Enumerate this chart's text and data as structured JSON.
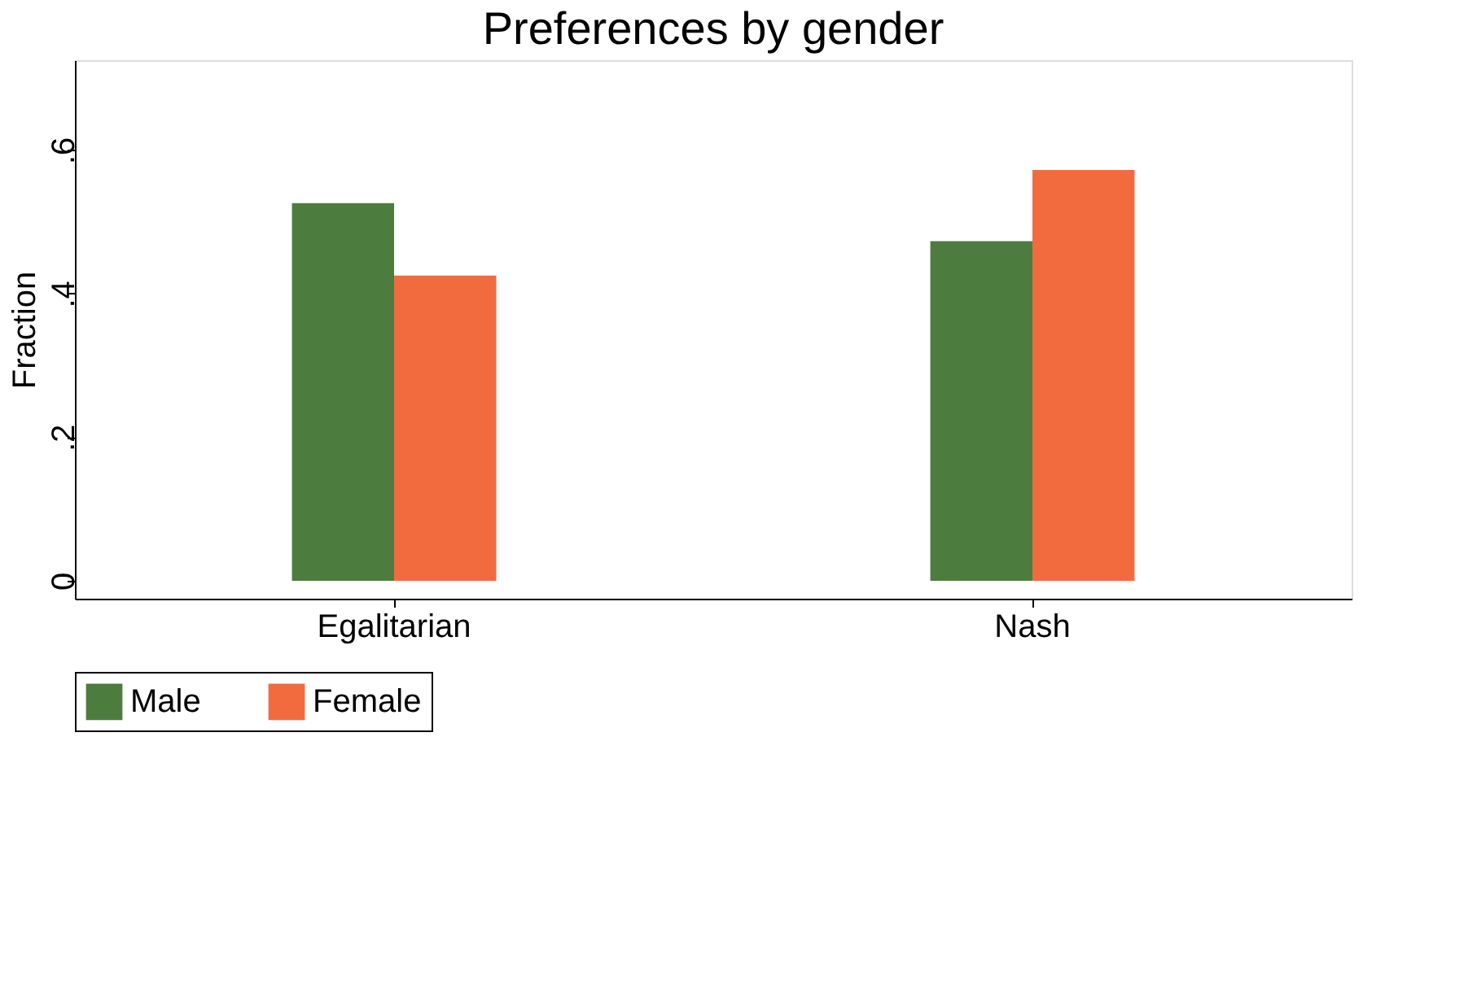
{
  "chart_data": {
    "type": "bar",
    "title": "Preferences by gender",
    "ylabel": "Fraction",
    "categories": [
      "Egalitarian",
      "Nash"
    ],
    "series": [
      {
        "name": "Male",
        "color": "#4d7c3f",
        "values": [
          0.526,
          0.473
        ]
      },
      {
        "name": "Female",
        "color": "#f26b3f",
        "values": [
          0.425,
          0.572
        ]
      }
    ],
    "ylim": [
      -0.025,
      0.725
    ],
    "yticks": [
      0,
      {
        "value": 0.2,
        "label": ".2"
      },
      {
        "value": 0.4,
        "label": ".4"
      },
      {
        "value": 0.6,
        "label": ".6"
      }
    ],
    "grid": false,
    "legend": "bottom"
  }
}
